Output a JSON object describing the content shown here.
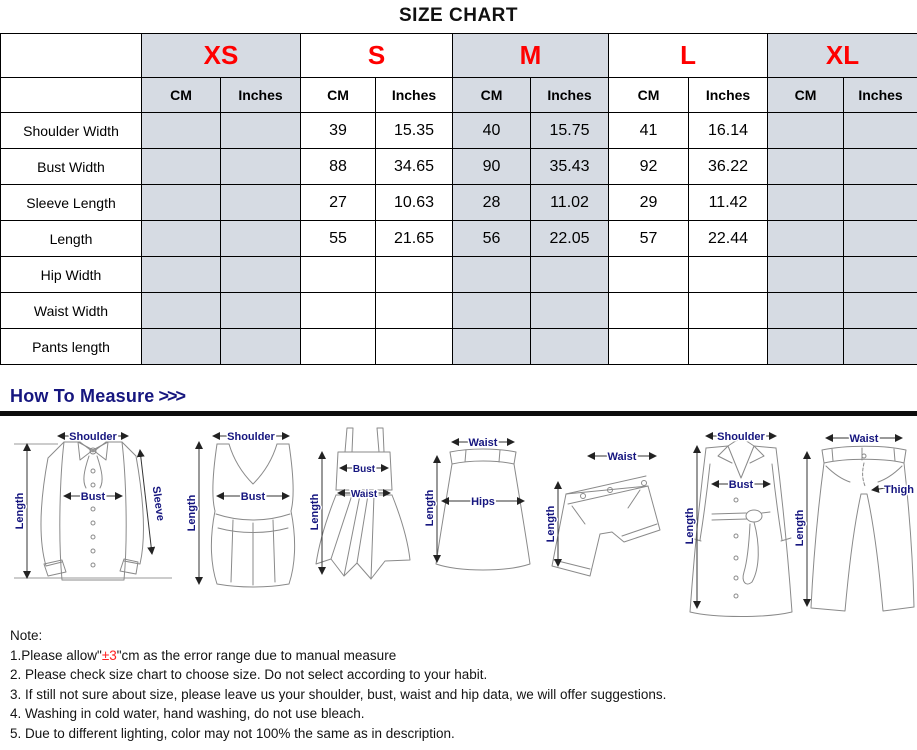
{
  "title": "SIZE CHART",
  "size_chart": {
    "sizes": [
      "XS",
      "S",
      "M",
      "L",
      "XL"
    ],
    "unit_headers": [
      "CM",
      "Inches"
    ],
    "rows": [
      {
        "label": "Shoulder Width",
        "values": [
          "",
          "",
          "39",
          "15.35",
          "40",
          "15.75",
          "41",
          "16.14",
          "",
          ""
        ]
      },
      {
        "label": "Bust Width",
        "values": [
          "",
          "",
          "88",
          "34.65",
          "90",
          "35.43",
          "92",
          "36.22",
          "",
          ""
        ]
      },
      {
        "label": "Sleeve Length",
        "values": [
          "",
          "",
          "27",
          "10.63",
          "28",
          "11.02",
          "29",
          "11.42",
          "",
          ""
        ]
      },
      {
        "label": "Length",
        "values": [
          "",
          "",
          "55",
          "21.65",
          "56",
          "22.05",
          "57",
          "22.44",
          "",
          ""
        ]
      },
      {
        "label": "Hip Width",
        "values": [
          "",
          "",
          "",
          "",
          "",
          "",
          "",
          "",
          "",
          ""
        ]
      },
      {
        "label": "Waist Width",
        "values": [
          "",
          "",
          "",
          "",
          "",
          "",
          "",
          "",
          "",
          ""
        ]
      },
      {
        "label": "Pants length",
        "values": [
          "",
          "",
          "",
          "",
          "",
          "",
          "",
          "",
          "",
          ""
        ]
      }
    ]
  },
  "how_to_measure": {
    "heading_text": "How To Measure",
    "arrows": ">>>"
  },
  "diagrams": [
    {
      "name": "blouse",
      "labels": [
        "Shoulder",
        "Bust",
        "Length",
        "Sleeve"
      ]
    },
    {
      "name": "tank-top",
      "labels": [
        "Shoulder",
        "Bust",
        "Length"
      ]
    },
    {
      "name": "dress",
      "labels": [
        "Bust",
        "Waist",
        "Length"
      ]
    },
    {
      "name": "skirt",
      "labels": [
        "Waist",
        "Hips",
        "Length"
      ]
    },
    {
      "name": "shorts",
      "labels": [
        "Waist",
        "Length"
      ]
    },
    {
      "name": "coat",
      "labels": [
        "Shoulder",
        "Bust",
        "Length"
      ]
    },
    {
      "name": "pants",
      "labels": [
        "Waist",
        "Thigh",
        "Length"
      ]
    }
  ],
  "note": {
    "heading": "Note:",
    "line1_prefix": "1.Please allow\"",
    "line1_red": "±3",
    "line1_suffix": "\"cm as the error range due to manual measure",
    "lines": [
      "2. Please check size chart to choose size. Do not select according to your habit.",
      "3. If still not sure about size, please leave us your shoulder, bust, waist and hip data, we will offer suggestions.",
      "4. Washing in cold water, hand washing, do not use bleach.",
      "5. Due to different lighting, color may not 100% the same as in description."
    ]
  },
  "colors": {
    "size_label_red": "#ff0000",
    "note_accent_red": "#ff2222",
    "measure_navy": "#16167f",
    "cell_shade": "#d6dbe3",
    "border": "#000000"
  }
}
